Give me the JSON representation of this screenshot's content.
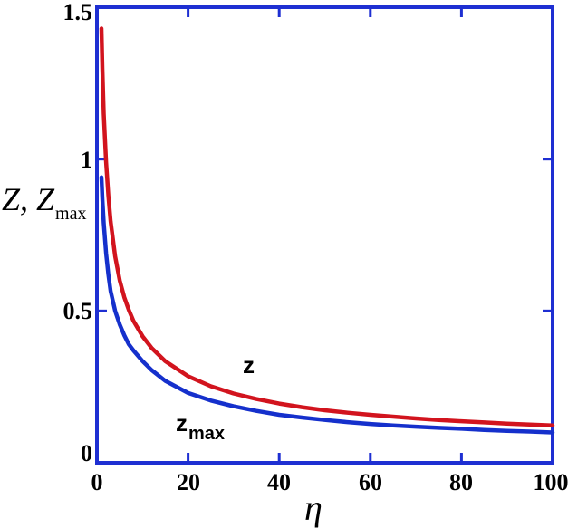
{
  "figure": {
    "background": "#ffffff",
    "frame_color": "#1e2fd2",
    "text_color": "#000000"
  },
  "chart_data": {
    "type": "line",
    "title": "",
    "xlabel": "η",
    "ylabel": {
      "main": "Z, Z",
      "sub": "max"
    },
    "xlim": [
      0,
      100
    ],
    "ylim": [
      0,
      1.5
    ],
    "grid": false,
    "frame": "full-box",
    "tick_style": "inward-ticks-on-all-four-sides",
    "legend_position": "inline-curve-labels",
    "xticks": [
      {
        "value": 0,
        "label": "0"
      },
      {
        "value": 20,
        "label": "20"
      },
      {
        "value": 40,
        "label": "40"
      },
      {
        "value": 60,
        "label": "60"
      },
      {
        "value": 80,
        "label": "80"
      },
      {
        "value": 100,
        "label": "100"
      }
    ],
    "yticks": [
      {
        "value": 0,
        "label": "0"
      },
      {
        "value": 0.5,
        "label": "0.5"
      },
      {
        "value": 1,
        "label": "1"
      },
      {
        "value": 1.5,
        "label": "1.5"
      }
    ],
    "series": [
      {
        "name": "z",
        "curve_label": {
          "main": "z",
          "sub": ""
        },
        "color": "#d2141e",
        "points": [
          [
            1,
            1.43
          ],
          [
            1.2,
            1.3
          ],
          [
            1.5,
            1.15
          ],
          [
            2,
            0.99
          ],
          [
            2.5,
            0.88
          ],
          [
            3,
            0.795
          ],
          [
            4,
            0.68
          ],
          [
            5,
            0.6
          ],
          [
            6,
            0.545
          ],
          [
            7,
            0.503
          ],
          [
            8,
            0.468
          ],
          [
            10,
            0.417
          ],
          [
            12,
            0.378
          ],
          [
            15,
            0.335
          ],
          [
            20,
            0.285
          ],
          [
            25,
            0.252
          ],
          [
            30,
            0.228
          ],
          [
            35,
            0.21
          ],
          [
            40,
            0.195
          ],
          [
            45,
            0.183
          ],
          [
            50,
            0.173
          ],
          [
            55,
            0.165
          ],
          [
            60,
            0.158
          ],
          [
            65,
            0.152
          ],
          [
            70,
            0.146
          ],
          [
            75,
            0.141
          ],
          [
            80,
            0.137
          ],
          [
            85,
            0.133
          ],
          [
            90,
            0.129
          ],
          [
            95,
            0.126
          ],
          [
            100,
            0.123
          ]
        ]
      },
      {
        "name": "z_max",
        "curve_label": {
          "main": "z",
          "sub": "max"
        },
        "color": "#1530cc",
        "points": [
          [
            1,
            0.94
          ],
          [
            1.2,
            0.87
          ],
          [
            1.5,
            0.79
          ],
          [
            2,
            0.69
          ],
          [
            2.5,
            0.62
          ],
          [
            3,
            0.565
          ],
          [
            4,
            0.5
          ],
          [
            5,
            0.455
          ],
          [
            6,
            0.42
          ],
          [
            7,
            0.39
          ],
          [
            8,
            0.37
          ],
          [
            10,
            0.335
          ],
          [
            12,
            0.305
          ],
          [
            15,
            0.27
          ],
          [
            20,
            0.23
          ],
          [
            25,
            0.205
          ],
          [
            30,
            0.186
          ],
          [
            35,
            0.171
          ],
          [
            40,
            0.158
          ],
          [
            45,
            0.149
          ],
          [
            50,
            0.141
          ],
          [
            55,
            0.134
          ],
          [
            60,
            0.128
          ],
          [
            65,
            0.123
          ],
          [
            70,
            0.119
          ],
          [
            75,
            0.115
          ],
          [
            80,
            0.112
          ],
          [
            85,
            0.108
          ],
          [
            90,
            0.105
          ],
          [
            95,
            0.103
          ],
          [
            100,
            0.1
          ]
        ]
      }
    ]
  }
}
